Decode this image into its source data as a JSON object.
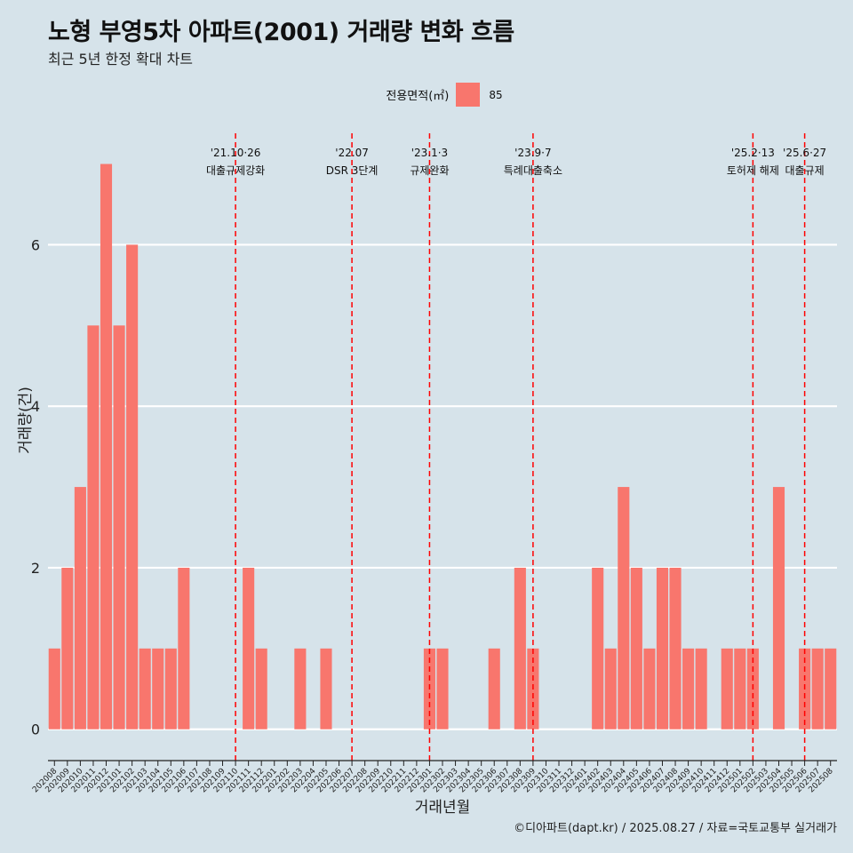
{
  "title": "노형 부영5차 아파트(2001) 거래량 변화 흐름",
  "subtitle": "최근 5년 한정 확대 차트",
  "legend": {
    "title": "전용면적(㎡)",
    "label": "85",
    "color": "#f8766d"
  },
  "caption": "©디아파트(dapt.kr) / 2025.08.27 / 자료=국토교통부 실거래가",
  "colors": {
    "background": "#d6e3ea",
    "bar": "#f8766d",
    "grid": "#ffffff",
    "event_line": "#ff0000"
  },
  "chart_data": {
    "type": "bar",
    "xlabel": "거래년월",
    "ylabel": "거래량(건)",
    "ylim": [
      -0.3,
      7.6
    ],
    "yticks": [
      0,
      2,
      4,
      6
    ],
    "grid": "horizontal major lines, white",
    "legend_position": "top",
    "categories": [
      "202008",
      "202009",
      "202010",
      "202011",
      "202012",
      "202101",
      "202102",
      "202103",
      "202104",
      "202105",
      "202106",
      "202107",
      "202108",
      "202109",
      "202110",
      "202111",
      "202112",
      "202201",
      "202202",
      "202203",
      "202204",
      "202205",
      "202206",
      "202207",
      "202208",
      "202209",
      "202210",
      "202211",
      "202212",
      "202301",
      "202302",
      "202303",
      "202304",
      "202305",
      "202306",
      "202307",
      "202308",
      "202309",
      "202310",
      "202311",
      "202312",
      "202401",
      "202402",
      "202403",
      "202404",
      "202405",
      "202406",
      "202407",
      "202408",
      "202409",
      "202410",
      "202411",
      "202412",
      "202501",
      "202502",
      "202503",
      "202504",
      "202505",
      "202506",
      "202507",
      "202508"
    ],
    "series": [
      {
        "name": "85",
        "values": [
          1,
          2,
          3,
          5,
          7,
          5,
          6,
          1,
          1,
          1,
          2,
          0,
          0,
          0,
          0,
          2,
          1,
          0,
          0,
          1,
          0,
          1,
          0,
          0,
          0,
          0,
          0,
          0,
          0,
          1,
          1,
          0,
          0,
          0,
          1,
          0,
          2,
          1,
          0,
          0,
          0,
          0,
          2,
          1,
          3,
          2,
          1,
          2,
          2,
          1,
          1,
          0,
          1,
          1,
          1,
          0,
          3,
          0,
          1,
          1,
          1
        ]
      }
    ],
    "annotations": [
      {
        "category": "202110",
        "date": "'21.10·26",
        "label": "대출규제강화"
      },
      {
        "category": "202207",
        "date": "'22.07",
        "label": "DSR 3단계"
      },
      {
        "category": "202301",
        "date": "'23.1·3",
        "label": "규제완화"
      },
      {
        "category": "202309",
        "date": "'23.9·7",
        "label": "특례대출축소"
      },
      {
        "category": "202502",
        "date": "'25.2·13",
        "label": "토허제 해제"
      },
      {
        "category": "202506",
        "date": "'25.6·27",
        "label": "대출규제"
      }
    ]
  }
}
